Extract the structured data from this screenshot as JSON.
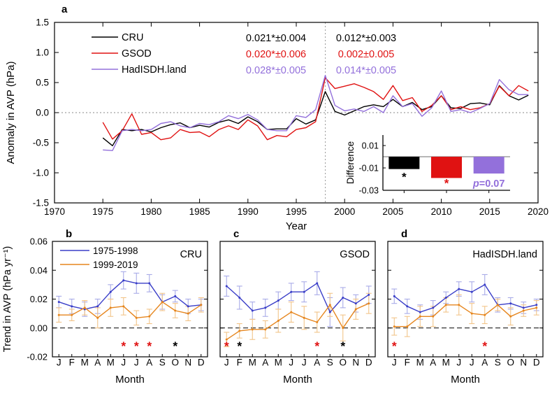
{
  "colors": {
    "black": "#000000",
    "red": "#e01212",
    "purple": "#9370db",
    "blue": "#3a3ec8",
    "blue_err": "#a8abe8",
    "orange": "#e6861e",
    "orange_err": "#f2c489"
  },
  "panel_labels": {
    "a": "a",
    "b": "b",
    "c": "c",
    "d": "d"
  },
  "chart_data": [
    {
      "id": "a",
      "type": "line",
      "xlabel": "Year",
      "ylabel": "Anomaly in AVP (hPa)",
      "xlim": [
        1970,
        2020
      ],
      "ylim": [
        -1.5,
        1.5
      ],
      "xticks": [
        "1970",
        "1975",
        "1980",
        "1985",
        "1990",
        "1995",
        "2000",
        "2005",
        "2010",
        "2015",
        "2020"
      ],
      "yticks": [
        "1.5",
        "1.0",
        "0.5",
        "0.0",
        "-0.5",
        "-1.0",
        "-1.5"
      ],
      "x_start": 1975,
      "x_end": 2019,
      "zero_line": true,
      "vline_x": 1998,
      "legend_position": "top-left",
      "series": [
        {
          "name": "CRU",
          "color_key": "black",
          "values": [
            -0.42,
            -0.55,
            -0.28,
            -0.3,
            -0.28,
            -0.32,
            -0.25,
            -0.2,
            -0.17,
            -0.25,
            -0.21,
            -0.24,
            -0.16,
            -0.12,
            -0.18,
            -0.07,
            -0.15,
            -0.28,
            -0.27,
            -0.27,
            -0.1,
            -0.19,
            -0.12,
            0.35,
            0.02,
            -0.04,
            0.03,
            0.1,
            0.13,
            0.1,
            0.22,
            0.1,
            0.17,
            0.05,
            0.1,
            0.28,
            0.08,
            0.07,
            0.15,
            0.16,
            0.13,
            0.45,
            0.28,
            0.21,
            0.29
          ]
        },
        {
          "name": "GSOD",
          "color_key": "red",
          "values": [
            -0.16,
            -0.44,
            -0.3,
            -0.02,
            -0.36,
            -0.33,
            -0.45,
            -0.42,
            -0.28,
            -0.33,
            -0.32,
            -0.4,
            -0.28,
            -0.22,
            -0.28,
            -0.12,
            -0.22,
            -0.45,
            -0.38,
            -0.4,
            -0.28,
            -0.25,
            -0.15,
            0.58,
            0.4,
            0.44,
            0.48,
            0.42,
            0.35,
            0.22,
            0.45,
            0.2,
            0.25,
            0.02,
            0.12,
            0.28,
            0.05,
            0.1,
            0.05,
            0.08,
            0.15,
            0.44,
            0.28,
            0.45,
            0.36
          ]
        },
        {
          "name": "HadISDH.land",
          "color_key": "purple",
          "values": [
            -0.62,
            -0.63,
            -0.3,
            -0.28,
            -0.3,
            -0.28,
            -0.18,
            -0.15,
            -0.22,
            -0.25,
            -0.18,
            -0.2,
            -0.15,
            -0.05,
            -0.1,
            -0.03,
            -0.12,
            -0.28,
            -0.3,
            -0.3,
            -0.05,
            -0.08,
            0.05,
            0.62,
            0.12,
            0.03,
            0.06,
            0.02,
            0.1,
            0.0,
            0.28,
            0.1,
            0.15,
            -0.06,
            0.08,
            0.36,
            0.02,
            0.05,
            0.0,
            0.07,
            0.15,
            0.55,
            0.38,
            0.3,
            0.3
          ]
        }
      ],
      "trend_annotations": {
        "pre_1998": [
          {
            "text": "0.021*±0.004",
            "color_key": "black"
          },
          {
            "text": "0.020*±0.006",
            "color_key": "red"
          },
          {
            "text": "0.028*±0.005",
            "color_key": "purple"
          }
        ],
        "post_1998": [
          {
            "text": "0.012*±0.003",
            "color_key": "black"
          },
          {
            "text": "0.002±0.005",
            "color_key": "red"
          },
          {
            "text": "0.014*±0.005",
            "color_key": "purple"
          }
        ]
      }
    },
    {
      "id": "a-inset",
      "type": "bar",
      "ylabel": "Difference",
      "categories": [
        "CRU",
        "GSOD",
        "HadISDH.land"
      ],
      "values": [
        -0.011,
        -0.019,
        -0.015
      ],
      "color_keys": [
        "black",
        "red",
        "purple"
      ],
      "yticks": [
        "0.01",
        "-0.01",
        "-0.03"
      ],
      "ylim": [
        -0.03,
        0.0194
      ],
      "zero_line": true,
      "bar_labels": [
        {
          "text": "*",
          "color_key": "black"
        },
        {
          "text": "*",
          "color_key": "red"
        },
        {
          "text": "p=0.07",
          "color_key": "purple"
        }
      ]
    },
    {
      "id": "b",
      "type": "line-errorbar",
      "title": "CRU",
      "xlabel": "Month",
      "ylabel": "Trend in AVP (hPa yr⁻¹)",
      "months": [
        "J",
        "F",
        "M",
        "A",
        "M",
        "J",
        "J",
        "A",
        "S",
        "O",
        "N",
        "D"
      ],
      "ylim": [
        -0.02,
        0.06
      ],
      "yticks": [
        "0.06",
        "0.04",
        "0.02",
        "0.00",
        "-0.02"
      ],
      "zero_line_dashed": true,
      "show_legend": true,
      "show_y_labels": true,
      "show_ylabel": true,
      "series": [
        {
          "name": "1975-1998",
          "color_key": "blue",
          "err_color_key": "blue_err",
          "values": [
            0.018,
            0.015,
            0.013,
            0.015,
            0.025,
            0.033,
            0.031,
            0.031,
            0.018,
            0.022,
            0.015,
            0.016
          ],
          "errors": [
            0.004,
            0.005,
            0.005,
            0.005,
            0.005,
            0.006,
            0.007,
            0.006,
            0.005,
            0.004,
            0.005,
            0.004
          ]
        },
        {
          "name": "1999-2019",
          "color_key": "orange",
          "err_color_key": "orange_err",
          "values": [
            0.009,
            0.009,
            0.014,
            0.007,
            0.014,
            0.015,
            0.007,
            0.008,
            0.018,
            0.012,
            0.01,
            0.016
          ],
          "errors": [
            0.005,
            0.004,
            0.005,
            0.007,
            0.006,
            0.006,
            0.005,
            0.005,
            0.006,
            0.005,
            0.005,
            0.005
          ]
        }
      ],
      "significance": [
        {
          "month_index": 5,
          "color_key": "red"
        },
        {
          "month_index": 6,
          "color_key": "red"
        },
        {
          "month_index": 7,
          "color_key": "red"
        },
        {
          "month_index": 9,
          "color_key": "black"
        }
      ]
    },
    {
      "id": "c",
      "type": "line-errorbar",
      "title": "GSOD",
      "xlabel": "Month",
      "ylabel": "Trend in AVP (hPa yr⁻¹)",
      "months": [
        "J",
        "F",
        "M",
        "A",
        "M",
        "J",
        "J",
        "A",
        "S",
        "O",
        "N",
        "D"
      ],
      "ylim": [
        -0.02,
        0.06
      ],
      "yticks": [
        "0.06",
        "0.04",
        "0.02",
        "0.00",
        "-0.02"
      ],
      "zero_line_dashed": true,
      "show_legend": false,
      "show_y_labels": false,
      "show_ylabel": false,
      "series": [
        {
          "name": "1975-1998",
          "color_key": "blue",
          "err_color_key": "blue_err",
          "values": [
            0.029,
            0.021,
            0.012,
            0.014,
            0.019,
            0.025,
            0.025,
            0.031,
            0.011,
            0.021,
            0.017,
            0.023
          ],
          "errors": [
            0.007,
            0.008,
            0.006,
            0.006,
            0.006,
            0.006,
            0.007,
            0.008,
            0.01,
            0.007,
            0.006,
            0.006
          ]
        },
        {
          "name": "1999-2019",
          "color_key": "orange",
          "err_color_key": "orange_err",
          "values": [
            -0.008,
            -0.002,
            -0.001,
            -0.001,
            0.005,
            0.011,
            0.007,
            0.004,
            0.016,
            0.0,
            0.013,
            0.017
          ],
          "errors": [
            0.005,
            0.005,
            0.007,
            0.006,
            0.008,
            0.007,
            0.008,
            0.007,
            0.008,
            0.009,
            0.007,
            0.007
          ]
        }
      ],
      "significance": [
        {
          "month_index": 0,
          "color_key": "red"
        },
        {
          "month_index": 1,
          "color_key": "black"
        },
        {
          "month_index": 7,
          "color_key": "red"
        },
        {
          "month_index": 9,
          "color_key": "black"
        }
      ]
    },
    {
      "id": "d",
      "type": "line-errorbar",
      "title": "HadISDH.land",
      "xlabel": "Month",
      "ylabel": "Trend in AVP (hPa yr⁻¹)",
      "months": [
        "J",
        "F",
        "M",
        "A",
        "M",
        "J",
        "J",
        "A",
        "S",
        "O",
        "N",
        "D"
      ],
      "ylim": [
        -0.02,
        0.06
      ],
      "yticks": [
        "0.06",
        "0.04",
        "0.02",
        "0.00",
        "-0.02"
      ],
      "zero_line_dashed": true,
      "show_legend": false,
      "show_y_labels": false,
      "show_ylabel": false,
      "series": [
        {
          "name": "1975-1998",
          "color_key": "blue",
          "err_color_key": "blue_err",
          "values": [
            0.022,
            0.015,
            0.011,
            0.014,
            0.021,
            0.027,
            0.025,
            0.03,
            0.016,
            0.017,
            0.014,
            0.016
          ],
          "errors": [
            0.005,
            0.005,
            0.005,
            0.005,
            0.004,
            0.005,
            0.007,
            0.007,
            0.005,
            0.004,
            0.004,
            0.004
          ]
        },
        {
          "name": "1999-2019",
          "color_key": "orange",
          "err_color_key": "orange_err",
          "values": [
            0.001,
            0.001,
            0.008,
            0.008,
            0.016,
            0.016,
            0.01,
            0.009,
            0.016,
            0.008,
            0.012,
            0.014
          ],
          "errors": [
            0.006,
            0.007,
            0.007,
            0.007,
            0.005,
            0.007,
            0.007,
            0.006,
            0.004,
            0.006,
            0.004,
            0.005
          ]
        }
      ],
      "significance": [
        {
          "month_index": 0,
          "color_key": "red"
        },
        {
          "month_index": 7,
          "color_key": "red"
        }
      ]
    }
  ]
}
